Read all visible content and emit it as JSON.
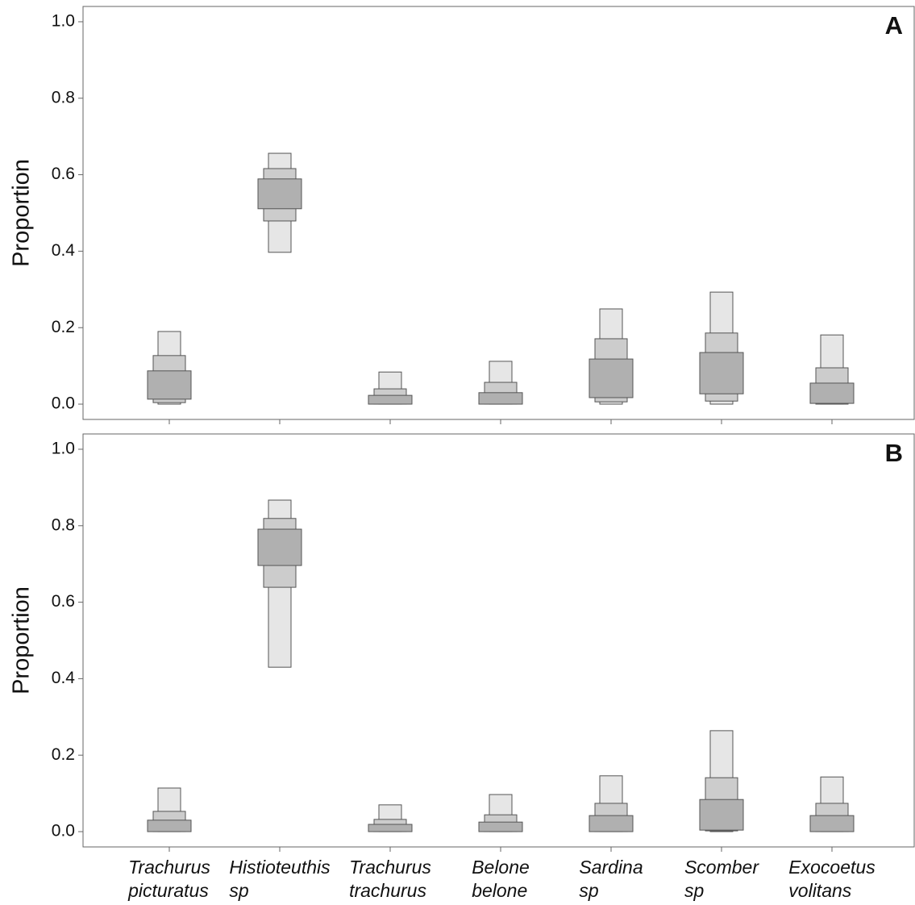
{
  "chart_data": [
    {
      "type": "interval-box",
      "panel_label": "A",
      "ylabel": "Proportion",
      "ylim": [
        -0.04,
        1.04
      ],
      "yticks": [
        {
          "value": 0,
          "label": "0.0"
        },
        0.2,
        0.4,
        0.6,
        0.8,
        {
          "value": 1,
          "label": "1.0"
        }
      ],
      "series": [
        {
          "color": "#e6e6e6",
          "low": [
            0,
            0.397,
            0,
            0,
            0,
            0,
            0
          ],
          "high": [
            0.19,
            0.656,
            0.084,
            0.112,
            0.249,
            0.293,
            0.181
          ]
        },
        {
          "color": "#cccccc",
          "low": [
            0.004,
            0.479,
            0,
            0,
            0.006,
            0.008,
            0
          ],
          "high": [
            0.127,
            0.616,
            0.04,
            0.057,
            0.171,
            0.186,
            0.095
          ]
        },
        {
          "color": "#b0b0b0",
          "low": [
            0.013,
            0.511,
            0,
            0,
            0.017,
            0.027,
            0.002
          ],
          "high": [
            0.087,
            0.589,
            0.023,
            0.03,
            0.118,
            0.135,
            0.055
          ]
        }
      ]
    },
    {
      "type": "interval-box",
      "panel_label": "B",
      "ylabel": "Proportion",
      "ylim": [
        -0.04,
        1.04
      ],
      "yticks": [
        {
          "value": 0,
          "label": "0.0"
        },
        0.2,
        0.4,
        0.6,
        0.8,
        {
          "value": 1,
          "label": "1.0"
        }
      ],
      "categories": [
        [
          "Trachurus",
          "picturatus"
        ],
        [
          "Histioteuthis",
          "sp"
        ],
        [
          "Trachurus",
          "trachurus"
        ],
        [
          "Belone",
          "belone"
        ],
        [
          "Sardina",
          "sp"
        ],
        [
          "Scomber",
          "sp"
        ],
        [
          "Exocoetus",
          "volitans"
        ]
      ],
      "series": [
        {
          "color": "#e6e6e6",
          "low": [
            0,
            0.43,
            0,
            0,
            0,
            0,
            0
          ],
          "high": [
            0.114,
            0.867,
            0.07,
            0.097,
            0.146,
            0.264,
            0.143
          ]
        },
        {
          "color": "#cccccc",
          "low": [
            0,
            0.639,
            0,
            0,
            0,
            0.002,
            0
          ],
          "high": [
            0.053,
            0.819,
            0.032,
            0.044,
            0.074,
            0.141,
            0.074
          ]
        },
        {
          "color": "#b0b0b0",
          "low": [
            0,
            0.696,
            0,
            0,
            0,
            0.004,
            0
          ],
          "high": [
            0.03,
            0.791,
            0.019,
            0.025,
            0.042,
            0.084,
            0.042
          ]
        }
      ]
    }
  ]
}
